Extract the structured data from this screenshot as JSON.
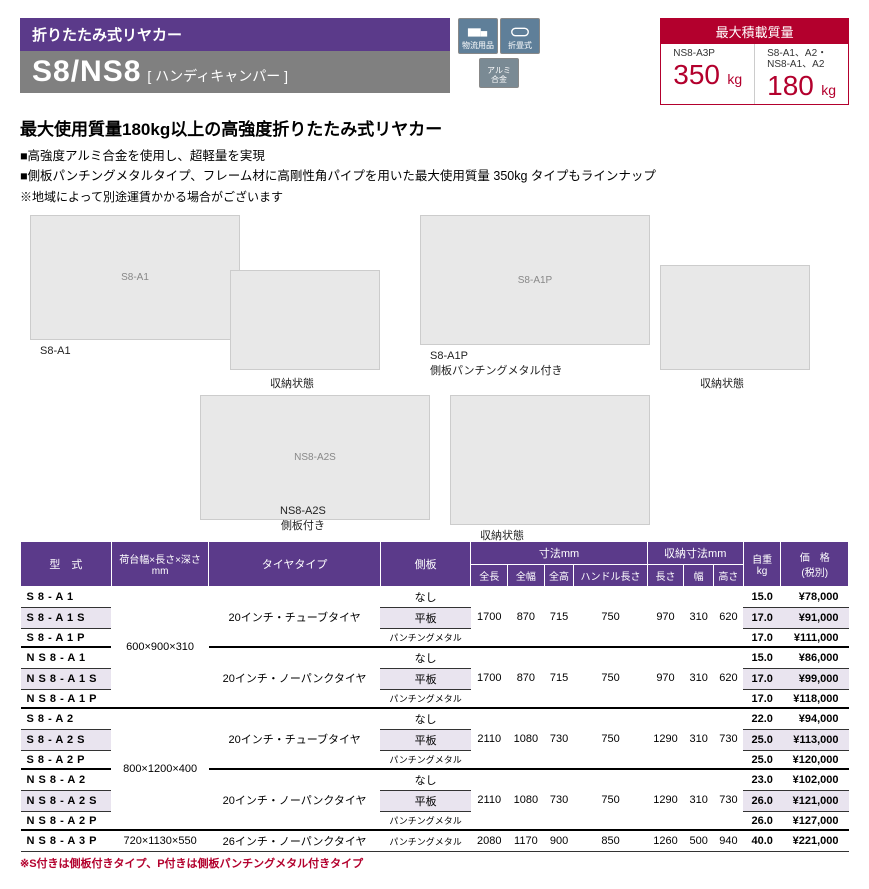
{
  "header": {
    "category": "折りたたみ式リヤカー",
    "model_main": "S8/NS8",
    "model_sub": "[ ハンディキャンパー ]",
    "badges": {
      "logistics": "物流用品",
      "foldable": "折畳式",
      "aluminum": "アルミ\n合金"
    },
    "load": {
      "title": "最大積載質量",
      "cells": [
        {
          "models": "NS8-A3P",
          "value": "350",
          "unit": "kg"
        },
        {
          "models": "S8-A1、A2・\nNS8-A1、A2",
          "value": "180",
          "unit": "kg"
        }
      ]
    }
  },
  "headline": "最大使用質量180kg以上の高強度折りたたみ式リヤカー",
  "bullets": [
    "■高強度アルミ合金を使用し、超軽量を実現",
    "■側板パンチングメタルタイプ、フレーム材に高剛性角パイプを用いた最大使用質量 350kg タイプもラインナップ"
  ],
  "note": "※地域によって別途運賃かかる場合がございます",
  "gallery": {
    "captions": {
      "s8a1": "S8-A1",
      "stored1": "収納状態",
      "s8a1p": "S8-A1P\n側板パンチングメタル付き",
      "stored2": "収納状態",
      "ns8a2s": "NS8-A2S\n側板付き",
      "stored3": "収納状態"
    }
  },
  "table": {
    "headers": {
      "model": "型　式",
      "bed": "荷台幅×長さ×深さ\nmm",
      "tire": "タイヤタイプ",
      "panel": "側板",
      "dims": "寸法mm",
      "len": "全長",
      "wid": "全幅",
      "hgt": "全高",
      "handle": "ハンドル長さ",
      "stored": "収納寸法mm",
      "slen": "長さ",
      "swid": "幅",
      "shgt": "高さ",
      "weight": "自重\nkg",
      "price": "価　格\n(税別)"
    },
    "tires": {
      "tube20": "20インチ・チューブタイヤ",
      "nopunk20": "20インチ・ノーパンクタイヤ",
      "nopunk26": "26インチ・ノーパンクタイヤ"
    },
    "panels": {
      "none": "なし",
      "flat": "平板",
      "punch": "パンチングメタル"
    },
    "beds": {
      "b1": "600×900×310",
      "b2": "800×1200×400",
      "b3": "720×1130×550"
    },
    "rows": [
      {
        "m": "S8-A1",
        "p": "none",
        "wt": "15.0",
        "pr": "¥78,000"
      },
      {
        "m": "S8-A1S",
        "p": "flat",
        "wt": "17.0",
        "pr": "¥91,000",
        "shade": true
      },
      {
        "m": "S8-A1P",
        "p": "punch",
        "wt": "17.0",
        "pr": "¥111,000"
      },
      {
        "m": "NS8-A1",
        "p": "none",
        "wt": "15.0",
        "pr": "¥86,000",
        "top": true
      },
      {
        "m": "NS8-A1S",
        "p": "flat",
        "wt": "17.0",
        "pr": "¥99,000",
        "shade": true
      },
      {
        "m": "NS8-A1P",
        "p": "punch",
        "wt": "17.0",
        "pr": "¥118,000"
      },
      {
        "m": "S8-A2",
        "p": "none",
        "wt": "22.0",
        "pr": "¥94,000",
        "top": true
      },
      {
        "m": "S8-A2S",
        "p": "flat",
        "wt": "25.0",
        "pr": "¥113,000",
        "shade": true
      },
      {
        "m": "S8-A2P",
        "p": "punch",
        "wt": "25.0",
        "pr": "¥120,000"
      },
      {
        "m": "NS8-A2",
        "p": "none",
        "wt": "23.0",
        "pr": "¥102,000",
        "top": true
      },
      {
        "m": "NS8-A2S",
        "p": "flat",
        "wt": "26.0",
        "pr": "¥121,000",
        "shade": true
      },
      {
        "m": "NS8-A2P",
        "p": "punch",
        "wt": "26.0",
        "pr": "¥127,000"
      },
      {
        "m": "NS8-A3P",
        "p": "punch",
        "wt": "40.0",
        "pr": "¥221,000",
        "top": true
      }
    ],
    "dimgroups": {
      "g1": {
        "len": "1700",
        "wid": "870",
        "hgt": "715",
        "han": "750",
        "sl": "970",
        "sw": "310",
        "sh": "620"
      },
      "g2": {
        "len": "2110",
        "wid": "1080",
        "hgt": "730",
        "han": "750",
        "sl": "1290",
        "sw": "310",
        "sh": "730"
      },
      "g3": {
        "len": "2080",
        "wid": "1170",
        "hgt": "900",
        "han": "850",
        "sl": "1260",
        "sw": "500",
        "sh": "940"
      }
    }
  },
  "footnote": "※S付きは側板付きタイプ、P付きは側板パンチングメタル付きタイプ"
}
